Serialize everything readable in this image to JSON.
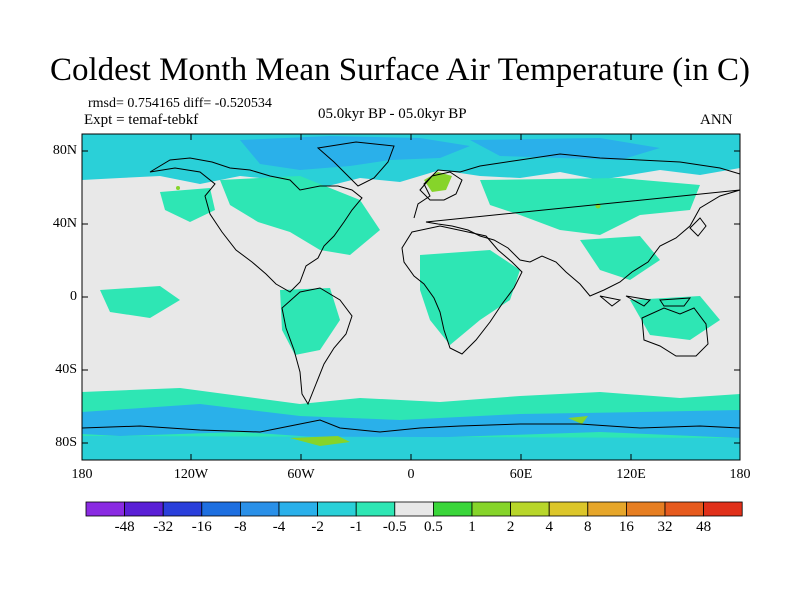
{
  "title": "Coldest Month Mean Surface Air Temperature (in C)",
  "stats": "rmsd= 0.754165 diff= -0.520534",
  "experiment": "Expt = temaf-tebkf",
  "period": "05.0kyr BP - 05.0kyr BP",
  "season": "ANN",
  "lat_labels": [
    "80N",
    "40N",
    "0",
    "40S",
    "80S"
  ],
  "lon_labels": [
    "180",
    "120W",
    "60W",
    "0",
    "60E",
    "120E",
    "180"
  ],
  "colorbar": {
    "labels": [
      "-48",
      "-32",
      "-16",
      "-8",
      "-4",
      "-2",
      "-1",
      "-0.5",
      "0.5",
      "1",
      "2",
      "4",
      "8",
      "16",
      "32",
      "48"
    ],
    "colors": [
      "#8a2be2",
      "#5a1fd6",
      "#2a3fdb",
      "#1e6fe0",
      "#2a90e8",
      "#2ab0ea",
      "#2ad0d8",
      "#2ee6b4",
      "#e8e8e8",
      "#3ad63a",
      "#86d42a",
      "#b8d62a",
      "#dcc62a",
      "#e6a62a",
      "#e67e22",
      "#e65a1e",
      "#e0301a"
    ]
  },
  "map_colors": {
    "neutral": "#e8e8e8",
    "teal": "#2ee6b4",
    "cyan": "#2ad0d8",
    "blue": "#2ab0ea",
    "green": "#86d42a",
    "coast": "#000000"
  }
}
